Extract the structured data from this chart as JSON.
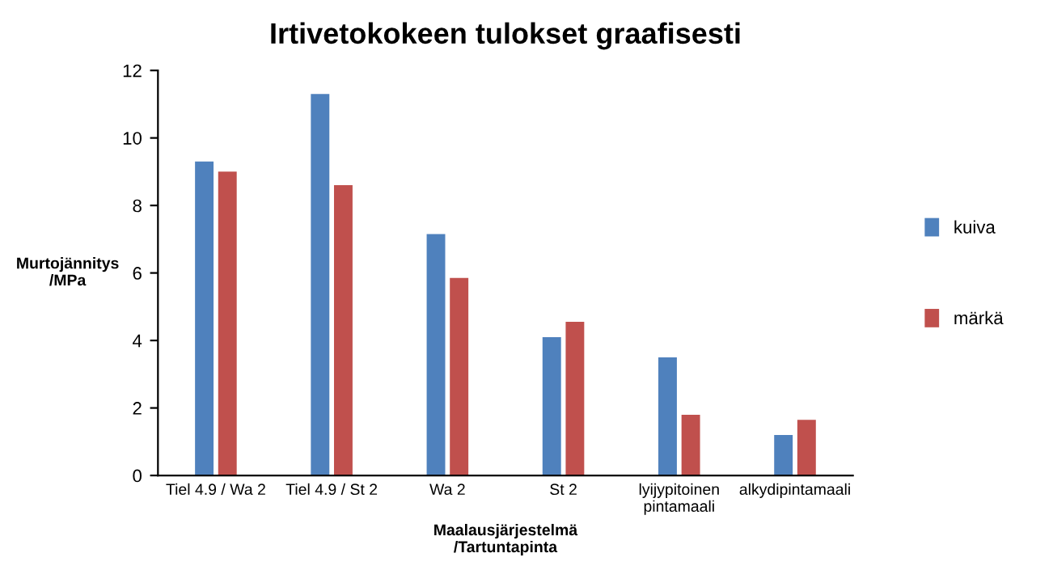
{
  "chart_data": {
    "type": "bar",
    "title": "Irtivetokokeen tulokset graafisesti",
    "xlabel": "Maalausjärjestelmä\n/Tartuntapinta",
    "ylabel": "Murtojännitys\n/MPa",
    "categories": [
      "Tiel 4.9 / Wa 2",
      "Tiel 4.9 / St 2",
      "Wa 2",
      "St 2",
      "lyijypitoinen\npintamaali",
      "alkydipintamaali"
    ],
    "series": [
      {
        "name": "kuiva",
        "color": "#4f81bd",
        "values": [
          9.3,
          11.3,
          7.15,
          4.1,
          3.5,
          1.2
        ]
      },
      {
        "name": "märkä",
        "color": "#c0504d",
        "values": [
          9.0,
          8.6,
          5.85,
          4.55,
          1.8,
          1.65
        ]
      }
    ],
    "ylim": [
      0,
      12
    ],
    "yticks": [
      0,
      2,
      4,
      6,
      8,
      10,
      12
    ],
    "grid": false,
    "legend": "right"
  }
}
